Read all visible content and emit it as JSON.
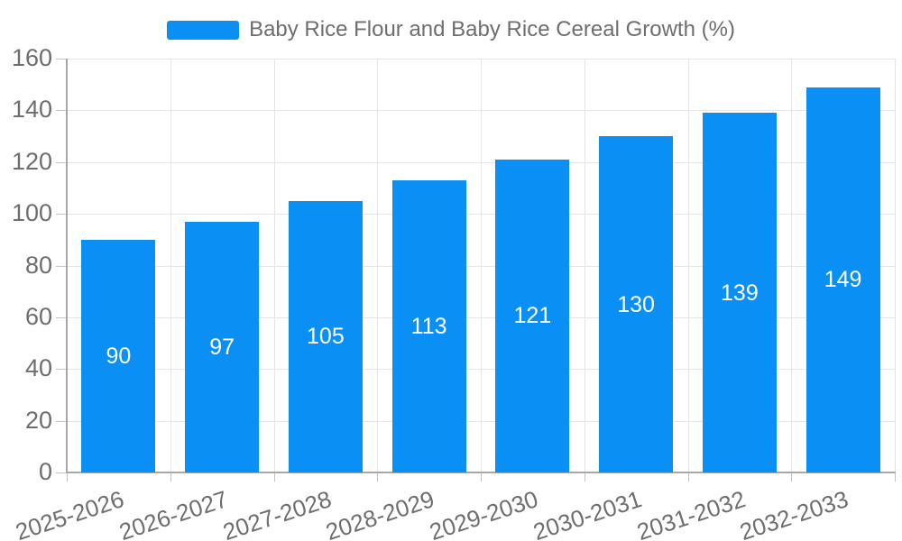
{
  "legend": {
    "label": "Baby Rice Flour and Baby Rice Cereal Growth (%)"
  },
  "chart_data": {
    "type": "bar",
    "title": "Baby Rice Flour and Baby Rice Cereal Growth (%)",
    "categories": [
      "2025-2026",
      "2026-2027",
      "2027-2028",
      "2028-2029",
      "2029-2030",
      "2030-2031",
      "2031-2032",
      "2032-2033"
    ],
    "values": [
      90,
      97,
      105,
      113,
      121,
      130,
      139,
      149
    ],
    "series": [
      {
        "name": "Baby Rice Flour and Baby Rice Cereal Growth (%)",
        "values": [
          90,
          97,
          105,
          113,
          121,
          130,
          139,
          149
        ]
      }
    ],
    "xlabel": "",
    "ylabel": "",
    "ylim": [
      0,
      160
    ],
    "yticks": [
      0,
      20,
      40,
      60,
      80,
      100,
      120,
      140,
      160
    ],
    "grid": true,
    "legend_position": "top-center",
    "value_labels": "centered-inside-bars",
    "x_label_rotation_deg": -18,
    "colors": {
      "bar": "#0a90f5",
      "axis_text": "#6e6e6e",
      "grid_line": "#e6e6e6",
      "axis_line": "#a8a8a8",
      "tick_line": "#c4c4c4",
      "value_label": "#ffffff",
      "background": "#ffffff"
    }
  }
}
